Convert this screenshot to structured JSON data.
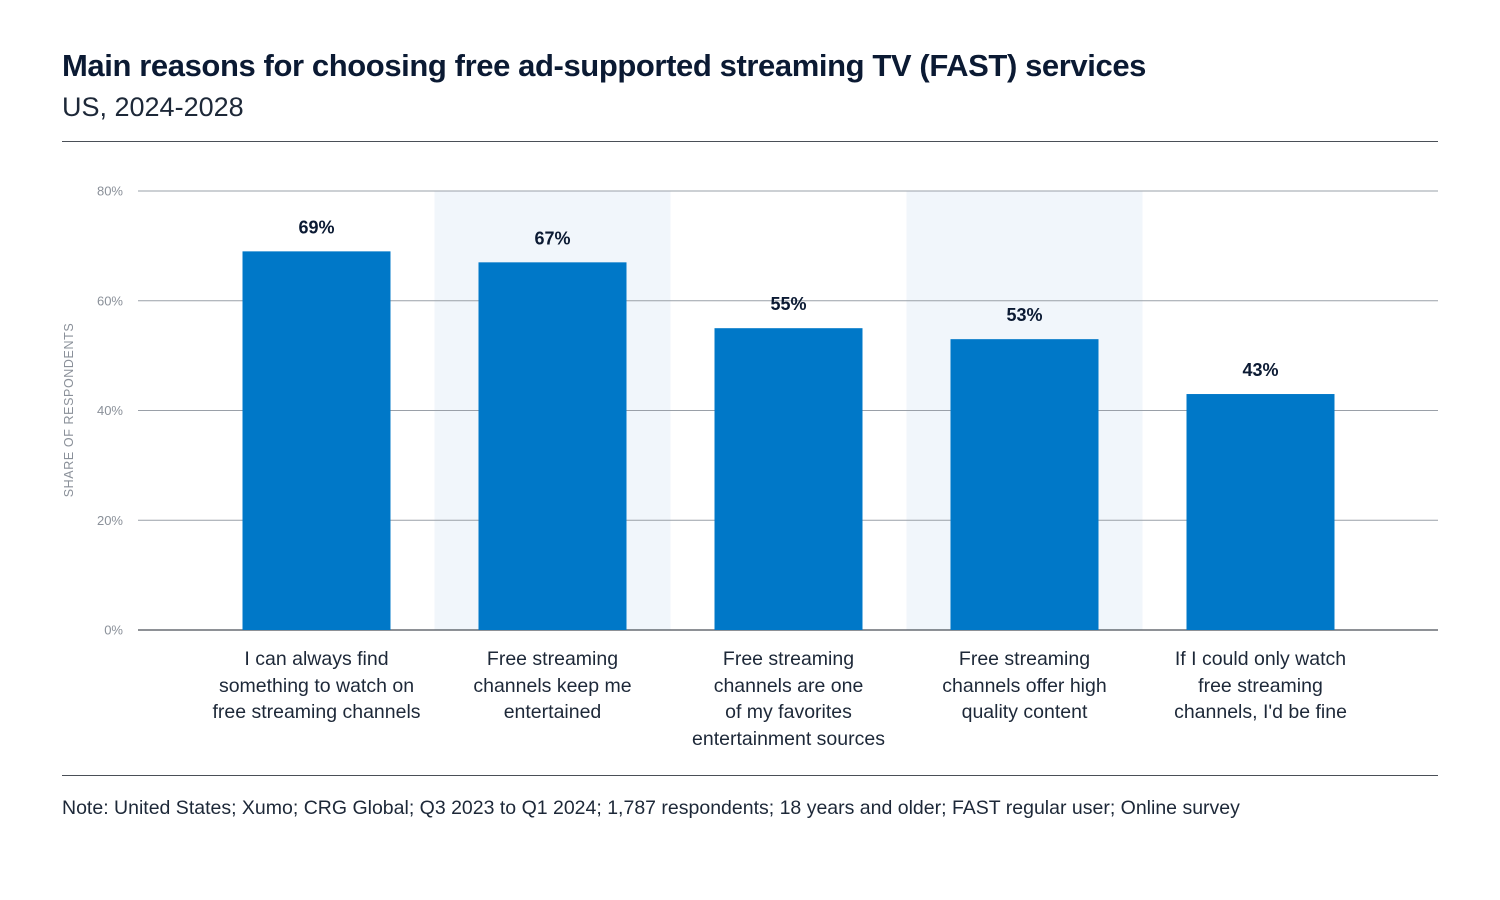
{
  "header": {
    "title": "Main reasons for choosing free ad-supported streaming TV (FAST) services",
    "subtitle": "US, 2024-2028"
  },
  "footer": {
    "note": "Note: United States; Xumo; CRG Global; Q3 2023 to Q1 2024; 1,787 respondents; 18 years and older; FAST regular user; Online survey"
  },
  "chart_data": {
    "type": "bar",
    "title": "Main reasons for choosing free ad-supported streaming TV (FAST) services",
    "subtitle": "US, 2024-2028",
    "xlabel": "",
    "ylabel": "SHARE OF RESPONDENTS",
    "categories": [
      "I can always find\nsomething to watch on\nfree streaming channels",
      "Free streaming\nchannels keep me\nentertained",
      "Free streaming\nchannels are one\nof my favorites\nentertainment sources",
      "Free streaming\nchannels offer high\nquality content",
      "If I could only watch\nfree streaming\nchannels, I'd be fine"
    ],
    "values": [
      69,
      67,
      55,
      53,
      43
    ],
    "data_labels": [
      "69%",
      "67%",
      "55%",
      "53%",
      "43%"
    ],
    "ylim": [
      0,
      80
    ],
    "yticks": [
      0,
      20,
      40,
      60,
      80
    ],
    "ytick_labels": [
      "0%",
      "20%",
      "40%",
      "60%",
      "80%"
    ],
    "grid": true,
    "shaded_categories": [
      1,
      3
    ],
    "colors": {
      "bar": "#0078c8",
      "band": "#f1f6fb",
      "grid": "#9aa0a8",
      "axis": "#4a4f57"
    }
  }
}
